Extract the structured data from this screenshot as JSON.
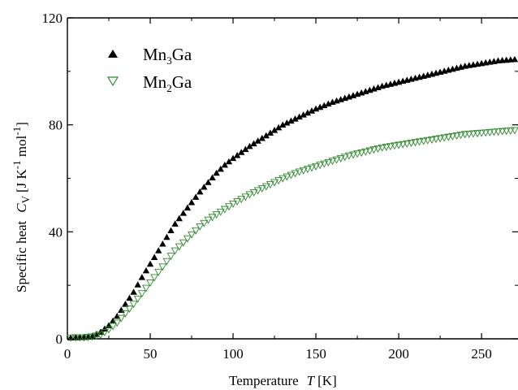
{
  "chart_data": {
    "type": "scatter",
    "xlabel_text": "Temperature",
    "xlabel_symbol": "T",
    "xlabel_unit": "[K]",
    "ylabel_text": "Specific heat",
    "ylabel_symbol": "C",
    "ylabel_symbol_sub": "V",
    "ylabel_unit_open": "[J K",
    "ylabel_unit_exp1": "-1",
    "ylabel_unit_mid": " mol",
    "ylabel_unit_exp2": "-1",
    "ylabel_unit_close": "]",
    "xlim": [
      0,
      272
    ],
    "ylim": [
      0,
      120
    ],
    "x_ticks": [
      0,
      50,
      100,
      150,
      200,
      250
    ],
    "x_tick_labels": [
      "0",
      "50",
      "100",
      "150",
      "200",
      "250"
    ],
    "y_ticks": [
      0,
      40,
      80,
      120
    ],
    "y_tick_labels": [
      "0",
      "40",
      "80",
      "120"
    ],
    "grid": false,
    "legend_position": "top-left",
    "series": [
      {
        "name": "Mn3Ga",
        "legend_base": "Mn",
        "legend_sub": "3",
        "legend_rest": "Ga",
        "marker": "filled-triangle-up",
        "color": "#000000",
        "x": [
          2,
          5,
          10,
          15,
          20,
          25,
          30,
          35,
          40,
          45,
          50,
          55,
          60,
          65,
          70,
          75,
          80,
          85,
          90,
          95,
          100,
          110,
          120,
          130,
          140,
          150,
          160,
          170,
          180,
          190,
          200,
          210,
          220,
          230,
          240,
          250,
          260,
          270
        ],
        "y": [
          0.4,
          0.5,
          0.6,
          1,
          2.5,
          5,
          8.5,
          13,
          17.5,
          23,
          28,
          33,
          38,
          43,
          47,
          51,
          55,
          58.5,
          62,
          65,
          67.5,
          72,
          76,
          80,
          83,
          86,
          88.5,
          90.5,
          92.5,
          94.5,
          96,
          97.5,
          99,
          100.5,
          102,
          103,
          104,
          104.5
        ]
      },
      {
        "name": "Mn2Ga",
        "legend_base": "Mn",
        "legend_sub": "2",
        "legend_rest": "Ga",
        "marker": "open-triangle-down",
        "color": "#2e8b2e",
        "x": [
          2,
          5,
          10,
          15,
          20,
          25,
          30,
          35,
          40,
          45,
          50,
          55,
          60,
          65,
          70,
          75,
          80,
          85,
          90,
          95,
          100,
          110,
          120,
          130,
          140,
          150,
          160,
          170,
          180,
          190,
          200,
          210,
          220,
          230,
          240,
          250,
          260,
          270
        ],
        "y": [
          0.4,
          0.5,
          0.5,
          0.8,
          1.5,
          3.5,
          6,
          9.5,
          13,
          17,
          21,
          25,
          29,
          33,
          36,
          39,
          42,
          44.5,
          46.5,
          48.5,
          50.5,
          54,
          57,
          60,
          62.5,
          64.5,
          66.5,
          68.5,
          70,
          71.5,
          72.5,
          73.5,
          74.5,
          75.5,
          76.5,
          77,
          77.5,
          78
        ]
      }
    ]
  }
}
